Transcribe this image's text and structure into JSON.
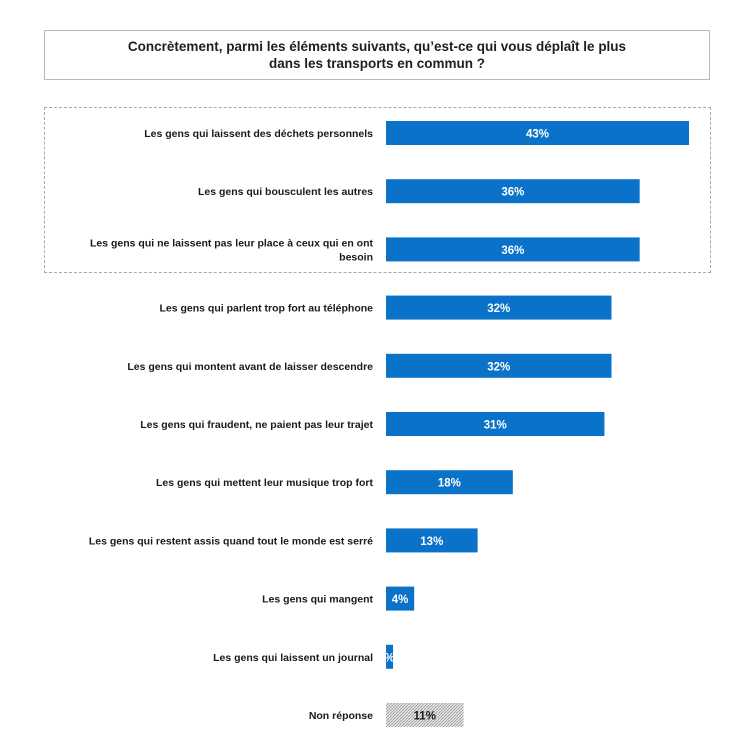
{
  "title": "Concrètement, parmi les éléments suivants, qu’est-ce qui vous déplaît le plus\ndans les transports en commun ?",
  "colors": {
    "bar": "#0a73c9",
    "no_answer": "#d9d9d9",
    "text": "#1a1a1a"
  },
  "chart_data": {
    "type": "bar",
    "orientation": "horizontal",
    "title": "Concrètement, parmi les éléments suivants, qu’est-ce qui vous déplaît le plus dans les transports en commun ?",
    "xlabel": "",
    "ylabel": "",
    "xlim": [
      0,
      43
    ],
    "unit": "%",
    "highlighted_top": 3,
    "categories": [
      [
        "Les gens qui laissent des déchets personnels"
      ],
      [
        "Les gens qui bousculent les autres"
      ],
      [
        "Les gens qui ne laissent pas leur place à ceux qui en ont",
        "besoin"
      ],
      [
        "Les gens qui parlent trop fort au téléphone"
      ],
      [
        "Les gens qui montent avant de laisser descendre"
      ],
      [
        "Les gens qui fraudent, ne paient pas leur trajet"
      ],
      [
        "Les gens qui mettent leur musique trop fort"
      ],
      [
        "Les gens qui restent assis quand tout le monde est serré"
      ],
      [
        "Les gens qui mangent"
      ],
      [
        "Les gens qui laissent un journal"
      ],
      [
        "Non réponse"
      ]
    ],
    "values": [
      43,
      36,
      36,
      32,
      32,
      31,
      18,
      13,
      4,
      1,
      11
    ],
    "value_labels": [
      "43%",
      "36%",
      "36%",
      "32%",
      "32%",
      "31%",
      "18%",
      "13%",
      "4%",
      "%",
      "11%"
    ],
    "no_answer_index": 10
  }
}
